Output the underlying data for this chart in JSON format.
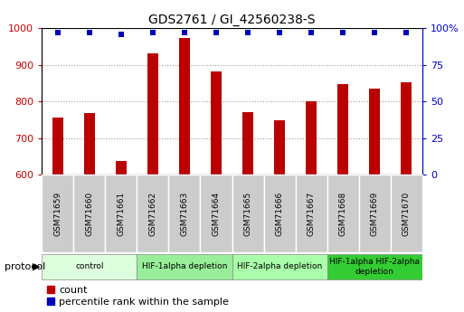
{
  "title": "GDS2761 / GI_42560238-S",
  "samples": [
    "GSM71659",
    "GSM71660",
    "GSM71661",
    "GSM71662",
    "GSM71663",
    "GSM71664",
    "GSM71665",
    "GSM71666",
    "GSM71667",
    "GSM71668",
    "GSM71669",
    "GSM71670"
  ],
  "counts": [
    755,
    768,
    638,
    930,
    972,
    882,
    770,
    748,
    800,
    848,
    835,
    852
  ],
  "percentiles": [
    97,
    97,
    96,
    97,
    97,
    97,
    97,
    97,
    97,
    97,
    97,
    97
  ],
  "ylim_left": [
    600,
    1000
  ],
  "ylim_right": [
    0,
    100
  ],
  "bar_color": "#bb0000",
  "dot_color": "#0000bb",
  "grid_color": "#999999",
  "background_color": "#ffffff",
  "sample_box_color": "#cccccc",
  "protocol_groups": [
    {
      "label": "control",
      "start": 0,
      "end": 2,
      "color": "#ddffdd"
    },
    {
      "label": "HIF-1alpha depletion",
      "start": 3,
      "end": 5,
      "color": "#99ee99"
    },
    {
      "label": "HIF-2alpha depletion",
      "start": 6,
      "end": 8,
      "color": "#aaffaa"
    },
    {
      "label": "HIF-1alpha HIF-2alpha\ndepletion",
      "start": 9,
      "end": 11,
      "color": "#33cc33"
    }
  ],
  "left_axis_color": "#cc0000",
  "right_axis_color": "#0000cc",
  "legend_count_label": "count",
  "legend_percentile_label": "percentile rank within the sample",
  "protocol_label": "protocol"
}
